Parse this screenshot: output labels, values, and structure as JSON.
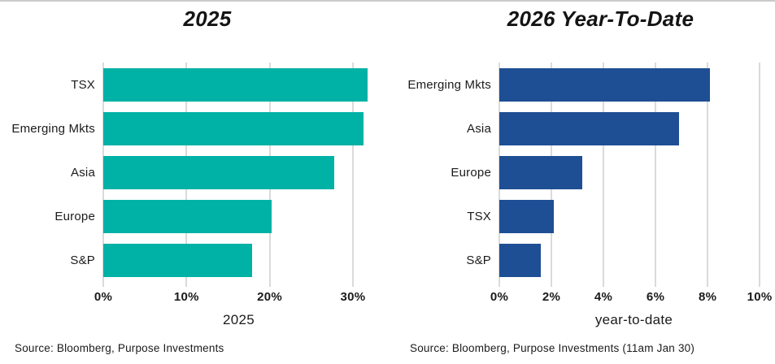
{
  "page": {
    "background": "#ffffff",
    "top_border_color": "#cbcbcb",
    "text_color": "#1b1b1b",
    "grid_color": "#dadada"
  },
  "chart_data": [
    {
      "type": "bar",
      "orientation": "horizontal",
      "title": "2025",
      "categories": [
        "TSX",
        "Emerging Mkts",
        "Asia",
        "Europe",
        "S&P"
      ],
      "values": [
        31.8,
        31.3,
        27.8,
        20.2,
        17.9
      ],
      "unit": "%",
      "xlabel": "2025",
      "xlim": [
        0,
        32.55
      ],
      "ticks": [
        0,
        10,
        20,
        30
      ],
      "tick_labels": [
        "0%",
        "10%",
        "20%",
        "30%"
      ],
      "bar_color": "#00B1A5",
      "grid": true,
      "legend": false,
      "source": "Source: Bloomberg, Purpose Investments"
    },
    {
      "type": "bar",
      "orientation": "horizontal",
      "title": "2026 Year-To-Date",
      "categories": [
        "Emerging Mkts",
        "Asia",
        "Europe",
        "TSX",
        "S&P"
      ],
      "values": [
        8.1,
        6.9,
        3.2,
        2.1,
        1.6
      ],
      "unit": "%",
      "xlabel": "year-to-date",
      "xlim": [
        0,
        10.34
      ],
      "ticks": [
        0,
        2,
        4,
        6,
        8,
        10
      ],
      "tick_labels": [
        "0%",
        "2%",
        "4%",
        "6%",
        "8%",
        "10%"
      ],
      "bar_color": "#1E4F94",
      "grid": true,
      "legend": false,
      "source": "Source: Bloomberg, Purpose Investments (11am Jan 30)"
    }
  ]
}
